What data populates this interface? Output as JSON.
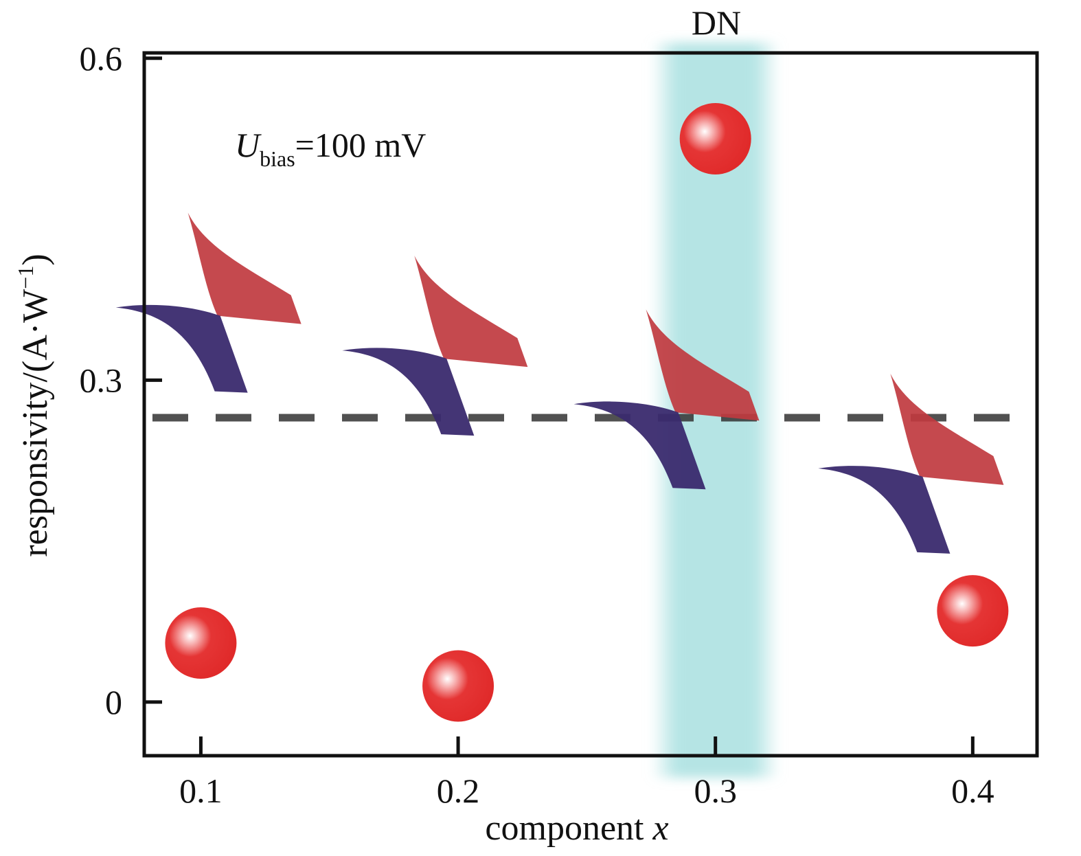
{
  "chart_data": {
    "type": "scatter",
    "xlabel": "component ",
    "xlabel_var": "x",
    "ylabel": "responsivity/(A·W",
    "ylabel_sup": "−1",
    "ylabel_close": ")",
    "xlim": [
      0.078,
      0.425
    ],
    "ylim": [
      -0.05,
      0.605
    ],
    "x_ticks": [
      {
        "value": 0.1,
        "label": "0.1"
      },
      {
        "value": 0.2,
        "label": "0.2"
      },
      {
        "value": 0.3,
        "label": "0.3"
      },
      {
        "value": 0.4,
        "label": "0.4"
      }
    ],
    "y_ticks": [
      {
        "value": 0,
        "label": "0"
      },
      {
        "value": 0.3,
        "label": "0.3"
      },
      {
        "value": 0.6,
        "label": "0.6"
      }
    ],
    "series": [
      {
        "marker": "circle",
        "color": "#e03030",
        "x": [
          0.1,
          0.2,
          0.3,
          0.4
        ],
        "y": [
          0.055,
          0.015,
          0.525,
          0.085
        ]
      }
    ],
    "reference_line": {
      "y": 0.265,
      "style": "dashed",
      "color": "#333333"
    },
    "highlight_band": {
      "x_center": 0.3,
      "x_width": 0.05,
      "color": "#a8e0e0",
      "label": "DN"
    },
    "annotation": {
      "var": "U",
      "sub": "bias",
      "text": "=100 mV"
    },
    "device_icons": [
      {
        "x": 0.107,
        "y": 0.36
      },
      {
        "x": 0.195,
        "y": 0.32
      },
      {
        "x": 0.285,
        "y": 0.27
      },
      {
        "x": 0.38,
        "y": 0.21
      }
    ],
    "colors": {
      "icon_red": "#c0393f",
      "icon_blue": "#3a2a6e",
      "point": "#e03030",
      "band": "#a8e0e0"
    }
  }
}
